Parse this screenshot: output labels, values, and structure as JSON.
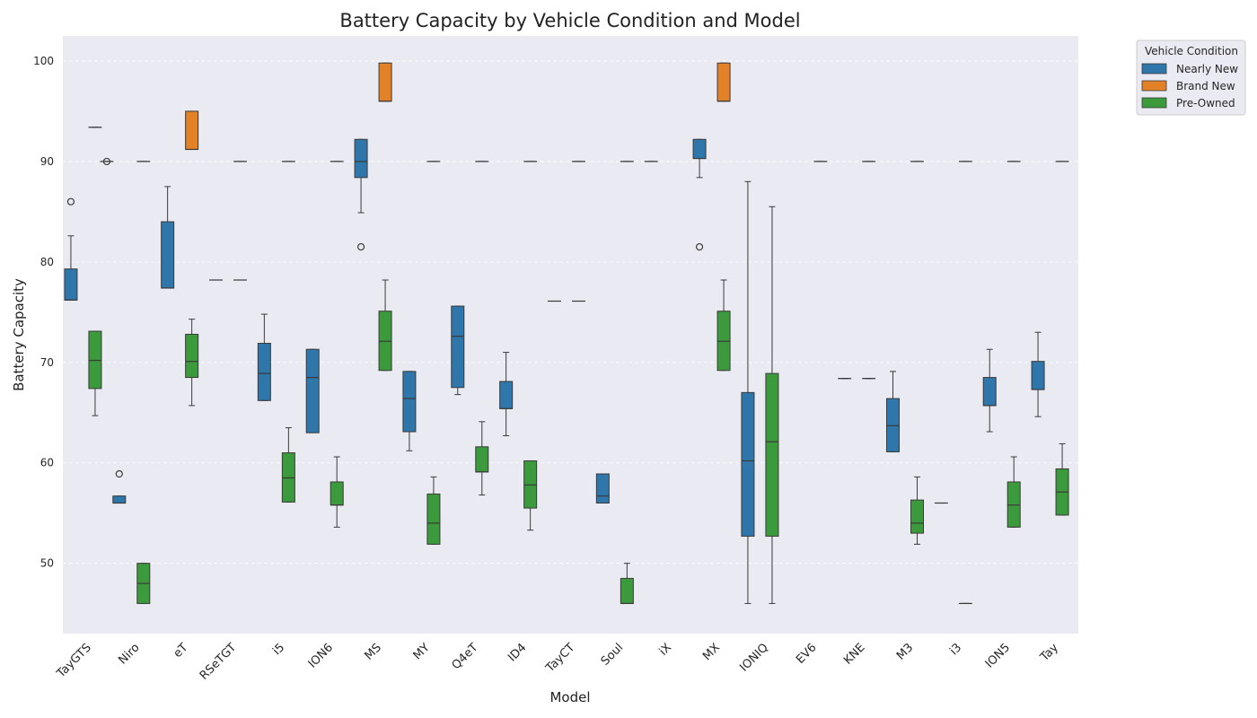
{
  "chart_data": {
    "type": "box",
    "title": "Battery Capacity by Vehicle Condition and Model",
    "xlabel": "Model",
    "ylabel": "Battery Capacity",
    "ylim": [
      43,
      102.5
    ],
    "yticks": [
      50,
      60,
      70,
      80,
      90,
      100
    ],
    "grid": true,
    "legend_placement": "outside-top-right",
    "legend": {
      "title": "Vehicle Condition",
      "entries": [
        {
          "name": "Nearly New",
          "color": "#2f76ab"
        },
        {
          "name": "Brand New",
          "color": "#e38126"
        },
        {
          "name": "Pre-Owned",
          "color": "#3b9a3b"
        }
      ]
    },
    "categories": [
      "TayGTS",
      "Niro",
      "eT",
      "RSeTGT",
      "i5",
      "ION6",
      "MS",
      "MY",
      "Q4eT",
      "ID4",
      "TayCT",
      "Soul",
      "iX",
      "MX",
      "IONIQ",
      "EV6",
      "KNE",
      "M3",
      "i3",
      "ION5",
      "Tay"
    ],
    "series": [
      {
        "name": "Nearly New",
        "color": "#2f76ab",
        "boxes": [
          {
            "category": "TayGTS",
            "slot": 0,
            "whislo": 76.2,
            "q1": 76.2,
            "med": 76.2,
            "q3": 79.3,
            "whishi": 82.6,
            "fliers": [
              86.0
            ]
          },
          {
            "category": "TayGTS",
            "slot": 1,
            "whislo": 93.4,
            "q1": 93.4,
            "med": 93.4,
            "q3": 93.4,
            "whishi": 93.4,
            "fliers": []
          },
          {
            "category": "TayGTS",
            "slot": 2,
            "whislo": 90.0,
            "q1": 90.0,
            "med": 90.0,
            "q3": 90.0,
            "whishi": 90.0,
            "fliers": [
              90.0
            ]
          },
          {
            "category": "Niro",
            "slot": 0,
            "whislo": 56.0,
            "q1": 56.0,
            "med": 56.0,
            "q3": 56.7,
            "whishi": 56.7,
            "fliers": [
              58.9
            ]
          },
          {
            "category": "Niro",
            "slot": 1,
            "whislo": 90.0,
            "q1": 90.0,
            "med": 90.0,
            "q3": 90.0,
            "whishi": 90.0,
            "fliers": []
          },
          {
            "category": "eT",
            "slot": 0,
            "whislo": 77.4,
            "q1": 77.4,
            "med": 77.4,
            "q3": 84.0,
            "whishi": 87.5,
            "fliers": []
          },
          {
            "category": "RSeTGT",
            "slot": 0,
            "whislo": 78.2,
            "q1": 78.2,
            "med": 78.2,
            "q3": 78.2,
            "whishi": 78.2,
            "fliers": []
          },
          {
            "category": "RSeTGT",
            "slot": 1,
            "whislo": 90.0,
            "q1": 90.0,
            "med": 90.0,
            "q3": 90.0,
            "whishi": 90.0,
            "fliers": []
          },
          {
            "category": "i5",
            "slot": 0,
            "whislo": 66.2,
            "q1": 66.2,
            "med": 68.9,
            "q3": 71.9,
            "whishi": 74.8,
            "fliers": []
          },
          {
            "category": "i5",
            "slot": 1,
            "whislo": 90.0,
            "q1": 90.0,
            "med": 90.0,
            "q3": 90.0,
            "whishi": 90.0,
            "fliers": []
          },
          {
            "category": "ION6",
            "slot": 0,
            "whislo": 63.0,
            "q1": 63.0,
            "med": 68.5,
            "q3": 71.3,
            "whishi": 71.3,
            "fliers": []
          },
          {
            "category": "ION6",
            "slot": 1,
            "whislo": 90.0,
            "q1": 90.0,
            "med": 90.0,
            "q3": 90.0,
            "whishi": 90.0,
            "fliers": []
          },
          {
            "category": "MS",
            "slot": 0,
            "whislo": 84.9,
            "q1": 88.4,
            "med": 90.0,
            "q3": 92.2,
            "whishi": 92.2,
            "fliers": [
              81.5
            ]
          },
          {
            "category": "MY",
            "slot": 0,
            "whislo": 61.2,
            "q1": 63.1,
            "med": 66.4,
            "q3": 69.1,
            "whishi": 69.1,
            "fliers": []
          },
          {
            "category": "MY",
            "slot": 1,
            "whislo": 90.0,
            "q1": 90.0,
            "med": 90.0,
            "q3": 90.0,
            "whishi": 90.0,
            "fliers": []
          },
          {
            "category": "Q4eT",
            "slot": 0,
            "whislo": 66.8,
            "q1": 67.5,
            "med": 72.6,
            "q3": 75.6,
            "whishi": 75.6,
            "fliers": []
          },
          {
            "category": "Q4eT",
            "slot": 1,
            "whislo": 90.0,
            "q1": 90.0,
            "med": 90.0,
            "q3": 90.0,
            "whishi": 90.0,
            "fliers": []
          },
          {
            "category": "ID4",
            "slot": 0,
            "whislo": 62.7,
            "q1": 65.4,
            "med": 65.4,
            "q3": 68.1,
            "whishi": 71.0,
            "fliers": []
          },
          {
            "category": "ID4",
            "slot": 1,
            "whislo": 90.0,
            "q1": 90.0,
            "med": 90.0,
            "q3": 90.0,
            "whishi": 90.0,
            "fliers": []
          },
          {
            "category": "TayCT",
            "slot": 0,
            "whislo": 76.1,
            "q1": 76.1,
            "med": 76.1,
            "q3": 76.1,
            "whishi": 76.1,
            "fliers": []
          },
          {
            "category": "TayCT",
            "slot": 1,
            "whislo": 90.0,
            "q1": 90.0,
            "med": 90.0,
            "q3": 90.0,
            "whishi": 90.0,
            "fliers": []
          },
          {
            "category": "Soul",
            "slot": 0,
            "whislo": 56.0,
            "q1": 56.0,
            "med": 56.7,
            "q3": 58.9,
            "whishi": 58.9,
            "fliers": []
          },
          {
            "category": "Soul",
            "slot": 1,
            "whislo": 90.0,
            "q1": 90.0,
            "med": 90.0,
            "q3": 90.0,
            "whishi": 90.0,
            "fliers": []
          },
          {
            "category": "iX",
            "slot": 0,
            "whislo": 90.0,
            "q1": 90.0,
            "med": 90.0,
            "q3": 90.0,
            "whishi": 90.0,
            "fliers": []
          },
          {
            "category": "MX",
            "slot": 0,
            "whislo": 88.4,
            "q1": 90.3,
            "med": 90.3,
            "q3": 92.2,
            "whishi": 92.2,
            "fliers": [
              81.5
            ]
          },
          {
            "category": "IONIQ",
            "slot": 0,
            "whislo": 46.0,
            "q1": 52.7,
            "med": 60.2,
            "q3": 67.0,
            "whishi": 88.0,
            "fliers": []
          },
          {
            "category": "EV6",
            "slot": 1,
            "whislo": 90.0,
            "q1": 90.0,
            "med": 90.0,
            "q3": 90.0,
            "whishi": 90.0,
            "fliers": []
          },
          {
            "category": "KNE",
            "slot": 0,
            "whislo": 68.4,
            "q1": 68.4,
            "med": 68.4,
            "q3": 68.4,
            "whishi": 68.4,
            "fliers": []
          },
          {
            "category": "KNE",
            "slot": 1,
            "whislo": 90.0,
            "q1": 90.0,
            "med": 90.0,
            "q3": 90.0,
            "whishi": 90.0,
            "fliers": []
          },
          {
            "category": "M3",
            "slot": 0,
            "whislo": 61.1,
            "q1": 61.1,
            "med": 63.7,
            "q3": 66.4,
            "whishi": 69.1,
            "fliers": []
          },
          {
            "category": "M3",
            "slot": 1,
            "whislo": 90.0,
            "q1": 90.0,
            "med": 90.0,
            "q3": 90.0,
            "whishi": 90.0,
            "fliers": []
          },
          {
            "category": "i3",
            "slot": 0,
            "whislo": 56.0,
            "q1": 56.0,
            "med": 56.0,
            "q3": 56.0,
            "whishi": 56.0,
            "fliers": []
          },
          {
            "category": "i3",
            "slot": 1,
            "whislo": 90.0,
            "q1": 90.0,
            "med": 90.0,
            "q3": 90.0,
            "whishi": 90.0,
            "fliers": []
          },
          {
            "category": "ION5",
            "slot": 0,
            "whislo": 63.1,
            "q1": 65.7,
            "med": 65.7,
            "q3": 68.5,
            "whishi": 71.3,
            "fliers": []
          },
          {
            "category": "ION5",
            "slot": 1,
            "whislo": 90.0,
            "q1": 90.0,
            "med": 90.0,
            "q3": 90.0,
            "whishi": 90.0,
            "fliers": []
          },
          {
            "category": "Tay",
            "slot": 0,
            "whislo": 64.6,
            "q1": 67.3,
            "med": 67.3,
            "q3": 70.1,
            "whishi": 73.0,
            "fliers": []
          },
          {
            "category": "Tay",
            "slot": 1,
            "whislo": 90.0,
            "q1": 90.0,
            "med": 90.0,
            "q3": 90.0,
            "whishi": 90.0,
            "fliers": []
          }
        ]
      },
      {
        "name": "Brand New",
        "color": "#e38126",
        "boxes": [
          {
            "category": "eT",
            "slot": 1,
            "whislo": 91.2,
            "q1": 91.2,
            "med": 91.2,
            "q3": 95.0,
            "whishi": 95.0,
            "fliers": []
          },
          {
            "category": "MS",
            "slot": 1,
            "whislo": 96.0,
            "q1": 96.0,
            "med": 96.0,
            "q3": 99.8,
            "whishi": 99.8,
            "fliers": []
          },
          {
            "category": "MX",
            "slot": 1,
            "whislo": 96.0,
            "q1": 96.0,
            "med": 96.0,
            "q3": 99.8,
            "whishi": 99.8,
            "fliers": []
          }
        ]
      },
      {
        "name": "Pre-Owned",
        "color": "#3b9a3b",
        "boxes": [
          {
            "category": "TayGTS",
            "slot": 1,
            "whislo": 64.7,
            "q1": 67.4,
            "med": 70.2,
            "q3": 73.1,
            "whishi": 73.1,
            "fliers": []
          },
          {
            "category": "Niro",
            "slot": 1,
            "whislo": 46.0,
            "q1": 46.0,
            "med": 48.0,
            "q3": 50.0,
            "whishi": 50.0,
            "fliers": []
          },
          {
            "category": "eT",
            "slot": 1,
            "whislo": 65.7,
            "q1": 68.5,
            "med": 70.1,
            "q3": 72.8,
            "whishi": 74.3,
            "fliers": []
          },
          {
            "category": "RSeTGT",
            "slot": 1,
            "whislo": 78.2,
            "q1": 78.2,
            "med": 78.2,
            "q3": 78.2,
            "whishi": 78.2,
            "fliers": []
          },
          {
            "category": "i5",
            "slot": 1,
            "whislo": 56.1,
            "q1": 56.1,
            "med": 58.5,
            "q3": 61.0,
            "whishi": 63.5,
            "fliers": []
          },
          {
            "category": "ION6",
            "slot": 1,
            "whislo": 53.6,
            "q1": 55.8,
            "med": 55.8,
            "q3": 58.1,
            "whishi": 60.6,
            "fliers": []
          },
          {
            "category": "MS",
            "slot": 1,
            "whislo": 69.2,
            "q1": 69.2,
            "med": 72.1,
            "q3": 75.1,
            "whishi": 78.2,
            "fliers": []
          },
          {
            "category": "MY",
            "slot": 1,
            "whislo": 51.9,
            "q1": 51.9,
            "med": 54.0,
            "q3": 56.9,
            "whishi": 58.6,
            "fliers": []
          },
          {
            "category": "Q4eT",
            "slot": 1,
            "whislo": 56.8,
            "q1": 59.1,
            "med": 59.1,
            "q3": 61.6,
            "whishi": 64.1,
            "fliers": []
          },
          {
            "category": "ID4",
            "slot": 1,
            "whislo": 53.3,
            "q1": 55.5,
            "med": 57.8,
            "q3": 60.2,
            "whishi": 60.2,
            "fliers": []
          },
          {
            "category": "TayCT",
            "slot": 1,
            "whislo": 76.1,
            "q1": 76.1,
            "med": 76.1,
            "q3": 76.1,
            "whishi": 76.1,
            "fliers": []
          },
          {
            "category": "Soul",
            "slot": 1,
            "whislo": 46.0,
            "q1": 46.0,
            "med": 46.0,
            "q3": 48.5,
            "whishi": 50.0,
            "fliers": []
          },
          {
            "category": "MX",
            "slot": 1,
            "whislo": 69.2,
            "q1": 69.2,
            "med": 72.1,
            "q3": 75.1,
            "whishi": 78.2,
            "fliers": []
          },
          {
            "category": "IONIQ",
            "slot": 1,
            "whislo": 46.0,
            "q1": 52.7,
            "med": 62.1,
            "q3": 68.9,
            "whishi": 85.5,
            "fliers": []
          },
          {
            "category": "KNE",
            "slot": 1,
            "whislo": 68.4,
            "q1": 68.4,
            "med": 68.4,
            "q3": 68.4,
            "whishi": 68.4,
            "fliers": []
          },
          {
            "category": "M3",
            "slot": 1,
            "whislo": 51.9,
            "q1": 53.0,
            "med": 54.0,
            "q3": 56.3,
            "whishi": 58.6,
            "fliers": []
          },
          {
            "category": "i3",
            "slot": 1,
            "whislo": 46.0,
            "q1": 46.0,
            "med": 46.0,
            "q3": 46.0,
            "whishi": 46.0,
            "fliers": []
          },
          {
            "category": "ION5",
            "slot": 1,
            "whislo": 53.6,
            "q1": 53.6,
            "med": 55.8,
            "q3": 58.1,
            "whishi": 60.6,
            "fliers": []
          },
          {
            "category": "Tay",
            "slot": 1,
            "whislo": 54.8,
            "q1": 54.8,
            "med": 57.1,
            "q3": 59.4,
            "whishi": 61.9,
            "fliers": []
          }
        ]
      }
    ]
  }
}
